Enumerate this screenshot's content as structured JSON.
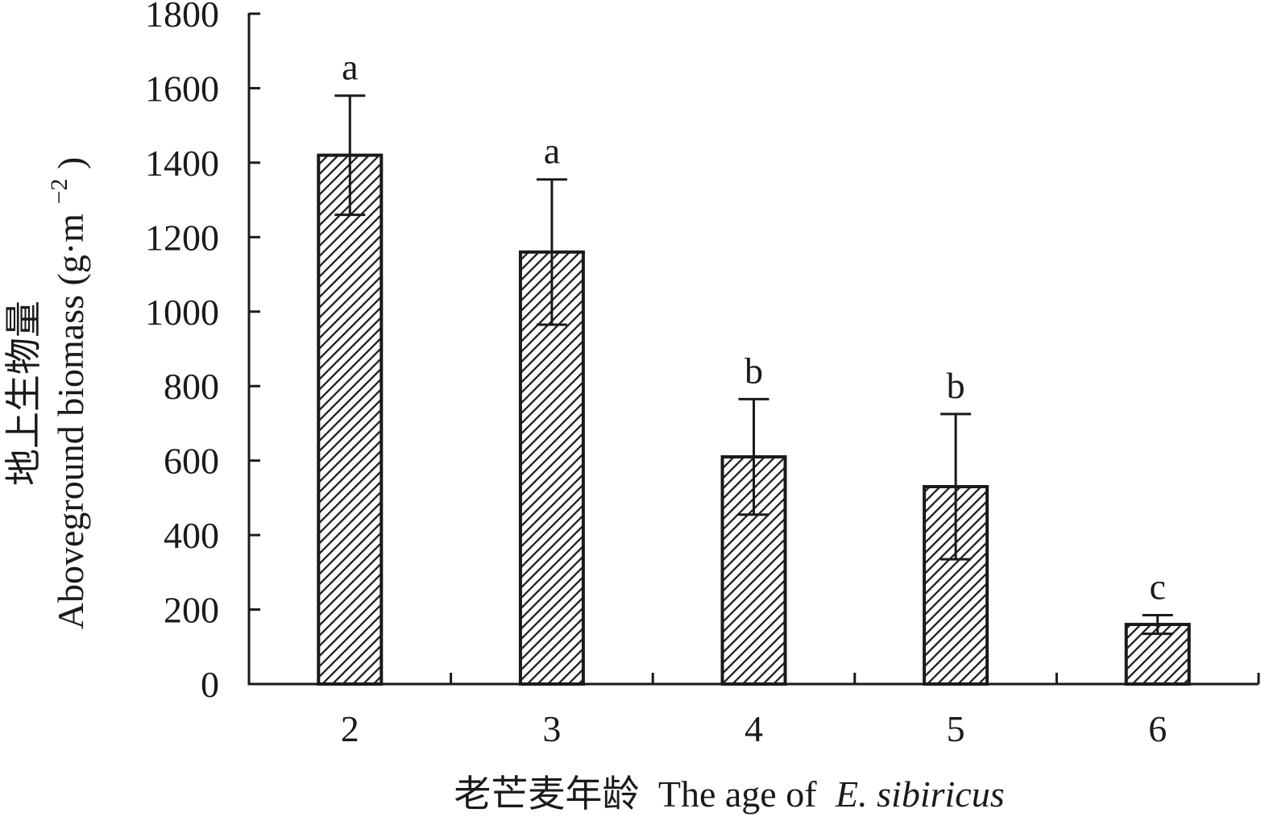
{
  "chart_data": {
    "type": "bar",
    "categories": [
      "2",
      "3",
      "4",
      "5",
      "6"
    ],
    "values": [
      1420,
      1160,
      610,
      530,
      160
    ],
    "errors": [
      160,
      195,
      155,
      195,
      25
    ],
    "significance": [
      "a",
      "a",
      "b",
      "b",
      "c"
    ],
    "ylim": [
      0,
      1800
    ],
    "yticks": [
      "0",
      "200",
      "400",
      "600",
      "800",
      "1000",
      "1200",
      "1400",
      "1600",
      "1800"
    ],
    "ylabel_cn": "地上生物量",
    "ylabel_en": "Aboveground biomass (g·m",
    "ylabel_sup": "−2",
    "ylabel_close": ")",
    "xlabel_cn": "老芒麦年龄",
    "xlabel_en": "The age of",
    "xlabel_species": "E. sibiricus",
    "grid": false,
    "bar_fill": "hatched",
    "colors": {
      "ink": "#1a1a1a",
      "background": "#ffffff"
    }
  }
}
